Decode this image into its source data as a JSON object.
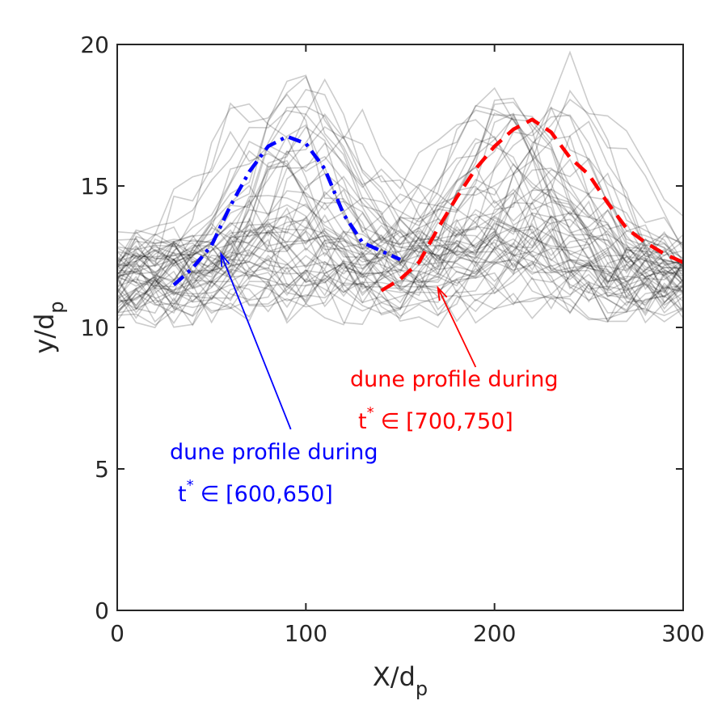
{
  "chart_data": {
    "type": "line",
    "xlabel": "X/d",
    "xlabel_sub": "p",
    "ylabel": "y/d",
    "ylabel_sub": "p",
    "xlim": [
      0,
      300
    ],
    "ylim": [
      0,
      20
    ],
    "xticks": [
      0,
      100,
      200,
      300
    ],
    "yticks": [
      0,
      5,
      10,
      15,
      20
    ],
    "xtick_labels": [
      "0",
      "100",
      "200",
      "300"
    ],
    "ytick_labels": [
      "0",
      "5",
      "10",
      "15",
      "20"
    ],
    "background_series": {
      "description_count": 60,
      "color": "#000000",
      "x": [
        0,
        10,
        20,
        30,
        40,
        50,
        60,
        70,
        80,
        90,
        100,
        110,
        120,
        130,
        140,
        150,
        160,
        170,
        180,
        190,
        200,
        210,
        220,
        230,
        240,
        250,
        260,
        270,
        280,
        290,
        300
      ]
    },
    "series": [
      {
        "name": "dune profile t* in [600,650]",
        "color": "#0000ff",
        "style": "dash-dot",
        "x": [
          30,
          40,
          50,
          60,
          70,
          80,
          90,
          100,
          110,
          120,
          130,
          140,
          150
        ],
        "y": [
          11.5,
          12.1,
          12.9,
          14.3,
          15.5,
          16.4,
          16.75,
          16.5,
          15.6,
          14.0,
          13.0,
          12.7,
          12.4
        ]
      },
      {
        "name": "dune profile t* in [700,750]",
        "color": "#ff0000",
        "style": "dashed",
        "x": [
          140,
          150,
          160,
          170,
          180,
          190,
          200,
          210,
          220,
          230,
          240,
          250,
          260,
          270,
          280,
          290,
          300
        ],
        "y": [
          11.3,
          11.7,
          12.3,
          13.5,
          14.6,
          15.6,
          16.4,
          17.0,
          17.35,
          16.9,
          16.0,
          15.4,
          14.4,
          13.5,
          13.0,
          12.6,
          12.3
        ]
      }
    ],
    "annotations": [
      {
        "id": "blue",
        "line1": "dune profile during",
        "t_symbol": "t",
        "t_sup": "*",
        "in_symbol": "∈",
        "range": "[600,650]",
        "color": "#0000ff",
        "arrow_target": [
          55,
          12.6
        ],
        "arrow_tail": [
          92,
          6.4
        ]
      },
      {
        "id": "red",
        "line1": "dune profile during",
        "t_symbol": "t",
        "t_sup": "*",
        "in_symbol": "∈",
        "range": "[700,750]",
        "color": "#ff0000",
        "arrow_target": [
          170,
          11.4
        ],
        "arrow_tail": [
          190,
          8.6
        ]
      }
    ]
  }
}
